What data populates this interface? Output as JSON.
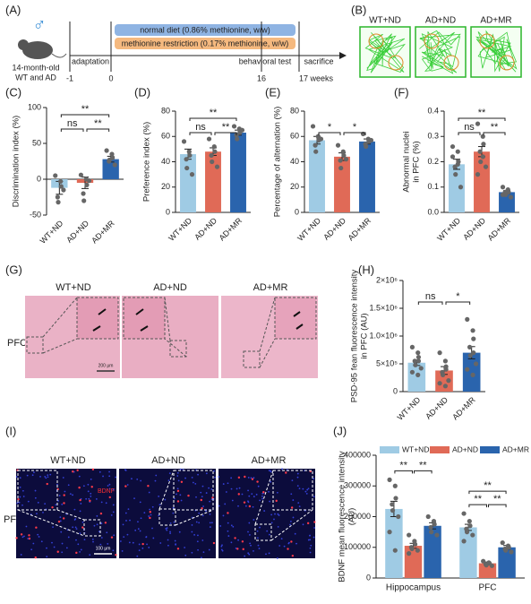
{
  "figure": {
    "A": {
      "label": "(A)",
      "symbol": "♂",
      "mouse": [
        "14-month-old",
        "WT and AD"
      ],
      "normal_diet": "normal diet (0.86% methionine, w/w)",
      "restriction": "methionine restriction (0.17% methionine, w/w)",
      "phases": [
        "adaptation",
        "behavioral test",
        "sacrifice"
      ],
      "timeline": [
        "-1",
        "0",
        "16",
        "17 weeks"
      ]
    },
    "B": {
      "label": "(B)",
      "groups": [
        "WT+ND",
        "AD+ND",
        "AD+MR"
      ]
    },
    "G": {
      "label": "(G)",
      "groups": [
        "WT+ND",
        "AD+ND",
        "AD+MR"
      ],
      "region": "PFC",
      "scale": "200 μm"
    },
    "I": {
      "label": "(I)",
      "groups": [
        "WT+ND",
        "AD+ND",
        "AD+MR"
      ],
      "region": "PFC",
      "stain": "BDNF",
      "scale": "100 μm"
    }
  },
  "chart_data": [
    {
      "type": "bar",
      "label": "(C)",
      "ylabel": [
        "Discrimination index  (%)"
      ],
      "categories": [
        "WT+ND",
        "AD+ND",
        "AD+MR"
      ],
      "colors": [
        "#9fcbe4",
        "#e06a57",
        "#2a64ad"
      ],
      "values": [
        -12,
        -5,
        28
      ],
      "errors": [
        9,
        8,
        4
      ],
      "points": [
        [
          5,
          -3,
          -10,
          -25,
          -32,
          -15
        ],
        [
          6,
          0,
          -8,
          -20,
          -30,
          -2
        ],
        [
          40,
          35,
          30,
          25,
          27,
          20
        ]
      ],
      "ylim": [
        -50,
        100
      ],
      "yticks": [
        -50,
        0,
        50,
        100
      ],
      "comparisons": [
        {
          "pair": [
            0,
            1
          ],
          "label": "ns"
        },
        {
          "pair": [
            1,
            2
          ],
          "label": "**"
        },
        {
          "pair": [
            0,
            2
          ],
          "label": "**"
        }
      ]
    },
    {
      "type": "bar",
      "label": "(D)",
      "ylabel": [
        "Preference index  (%)"
      ],
      "categories": [
        "WT+ND",
        "AD+ND",
        "AD+MR"
      ],
      "colors": [
        "#9fcbe4",
        "#e06a57",
        "#2a64ad"
      ],
      "values": [
        46,
        48,
        63
      ],
      "errors": [
        4,
        3,
        2
      ],
      "points": [
        [
          56,
          48,
          45,
          42,
          35,
          30
        ],
        [
          58,
          52,
          48,
          45,
          40,
          36
        ],
        [
          68,
          66,
          63,
          61,
          58,
          65
        ]
      ],
      "ylim": [
        0,
        80
      ],
      "yticks": [
        0,
        20,
        40,
        60,
        80
      ],
      "comparisons": [
        {
          "pair": [
            0,
            1
          ],
          "label": "ns"
        },
        {
          "pair": [
            1,
            2
          ],
          "label": "**"
        },
        {
          "pair": [
            0,
            2
          ],
          "label": "**"
        }
      ]
    },
    {
      "type": "bar",
      "label": "(E)",
      "ylabel": [
        "Percentage of alternation (%)"
      ],
      "categories": [
        "WT+ND",
        "AD+ND",
        "AD+MR"
      ],
      "colors": [
        "#9fcbe4",
        "#e06a57",
        "#2a64ad"
      ],
      "values": [
        57,
        44,
        56
      ],
      "errors": [
        3,
        3,
        2
      ],
      "points": [
        [
          68,
          60,
          57,
          53,
          48,
          58
        ],
        [
          53,
          48,
          45,
          41,
          35,
          42
        ],
        [
          62,
          58,
          56,
          54,
          52,
          57
        ]
      ],
      "ylim": [
        0,
        80
      ],
      "yticks": [
        0,
        20,
        40,
        60,
        80
      ],
      "comparisons": [
        {
          "pair": [
            0,
            1
          ],
          "label": "*"
        },
        {
          "pair": [
            1,
            2
          ],
          "label": "*"
        }
      ]
    },
    {
      "type": "bar",
      "label": "(F)",
      "ylabel": [
        "Abnormal nuclei",
        "in PFC (%)"
      ],
      "categories": [
        "WT+ND",
        "AD+ND",
        "AD+MR"
      ],
      "colors": [
        "#9fcbe4",
        "#e06a57",
        "#2a64ad"
      ],
      "values": [
        0.19,
        0.24,
        0.08
      ],
      "errors": [
        0.02,
        0.02,
        0.006
      ],
      "points": [
        [
          0.26,
          0.24,
          0.2,
          0.18,
          0.15,
          0.1,
          0.22,
          0.19
        ],
        [
          0.35,
          0.3,
          0.27,
          0.24,
          0.2,
          0.18,
          0.15,
          0.22
        ],
        [
          0.1,
          0.09,
          0.08,
          0.08,
          0.07,
          0.06,
          0.07
        ]
      ],
      "ylim": [
        0,
        0.4
      ],
      "yticks": [
        {
          "value": 0,
          "label": "0.0"
        },
        0.1,
        0.2,
        0.3,
        0.4
      ],
      "comparisons": [
        {
          "pair": [
            0,
            1
          ],
          "label": "ns"
        },
        {
          "pair": [
            1,
            2
          ],
          "label": "**"
        },
        {
          "pair": [
            0,
            2
          ],
          "label": "**"
        }
      ]
    },
    {
      "type": "bar",
      "label": "(H)",
      "ylabel": [
        "PSD-95 fean fluorescence intensity",
        "in PFC (AU)"
      ],
      "categories": [
        "WT+ND",
        "AD+ND",
        "AD+MR"
      ],
      "colors": [
        "#9fcbe4",
        "#e06a57",
        "#2a64ad"
      ],
      "values": [
        520000,
        380000,
        700000
      ],
      "errors": [
        50000,
        70000,
        110000
      ],
      "points": [
        [
          800000,
          700000,
          620000,
          550000,
          480000,
          420000,
          350000,
          300000,
          550000
        ],
        [
          700000,
          550000,
          450000,
          350000,
          300000,
          200000,
          150000,
          100000,
          400000
        ],
        [
          1300000,
          1100000,
          950000,
          800000,
          650000,
          500000,
          400000,
          300000,
          700000
        ]
      ],
      "ylim": [
        0,
        2000000
      ],
      "yticks": [
        0,
        {
          "value": 500000,
          "label": "5×10⁵"
        },
        {
          "value": 1000000,
          "label": "1.0×10⁶"
        },
        {
          "value": 1500000,
          "label": "1.5×10⁶"
        },
        {
          "value": 2000000,
          "label": "2×10⁶"
        }
      ],
      "comparisons": [
        {
          "pair": [
            0,
            1
          ],
          "label": "ns"
        },
        {
          "pair": [
            1,
            2
          ],
          "label": "*"
        }
      ]
    },
    {
      "type": "grouped-bar",
      "label": "(J)",
      "ylabel": [
        "BDNF mean fluorescence intensity",
        "(AU)"
      ],
      "categories": [
        "Hippocampus",
        "PFC"
      ],
      "legend": "top",
      "series": [
        {
          "name": "WT+ND",
          "color": "#9fcbe4",
          "values": [
            225000,
            165000
          ],
          "errors": [
            25000,
            10000
          ],
          "points": [
            [
              320000,
              300000,
              260000,
              240000,
              220000,
              200000,
              150000,
              90000
            ],
            [
              210000,
              185000,
              170000,
              160000,
              150000,
              140000,
              120000
            ]
          ]
        },
        {
          "name": "AD+ND",
          "color": "#e06a57",
          "values": [
            105000,
            48000
          ],
          "errors": [
            8000,
            4000
          ],
          "points": [
            [
              140000,
              120000,
              110000,
              100000,
              95000,
              90000,
              80000
            ],
            [
              55000,
              50000,
              48000,
              45000,
              42000,
              40000
            ]
          ]
        },
        {
          "name": "AD+MR",
          "color": "#2a64ad",
          "values": [
            170000,
            100000
          ],
          "errors": [
            10000,
            6000
          ],
          "points": [
            [
              200000,
              185000,
              175000,
              165000,
              150000,
              140000
            ],
            [
              115000,
              105000,
              100000,
              95000,
              90000,
              85000
            ]
          ]
        }
      ],
      "ylim": [
        0,
        400000
      ],
      "yticks": [
        0,
        100000,
        200000,
        300000,
        400000
      ],
      "comparisons": [
        {
          "category": 0,
          "pair": [
            0,
            1
          ],
          "label": "**"
        },
        {
          "category": 0,
          "pair": [
            1,
            2
          ],
          "label": "**"
        },
        {
          "category": 1,
          "pair": [
            0,
            1
          ],
          "label": "**"
        },
        {
          "category": 1,
          "pair": [
            1,
            2
          ],
          "label": "**"
        },
        {
          "category": 1,
          "pair": [
            0,
            2
          ],
          "label": "**"
        }
      ]
    }
  ]
}
